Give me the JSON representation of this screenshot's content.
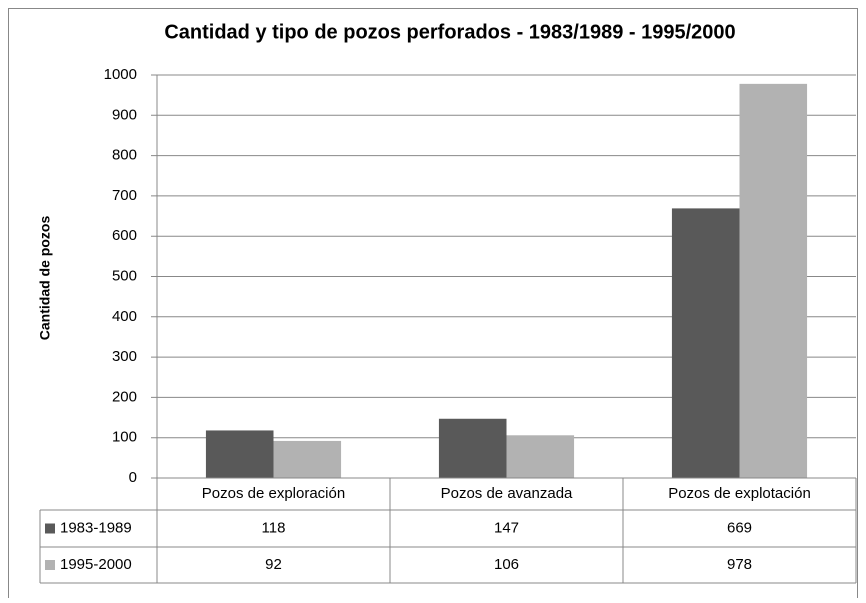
{
  "chart_data": {
    "type": "bar",
    "title": "Cantidad y tipo de pozos perforados - 1983/1989 - 1995/2000",
    "y_label": "Cantidad de pozos",
    "categories": [
      "Pozos de exploración",
      "Pozos de avanzada",
      "Pozos de explotación"
    ],
    "series": [
      {
        "name": "1983-1989",
        "color": "#595959",
        "values": [
          118,
          147,
          669
        ]
      },
      {
        "name": "1995-2000",
        "color": "#b2b2b2",
        "values": [
          92,
          106,
          978
        ]
      }
    ],
    "ylim": [
      0,
      1000
    ],
    "yticks": [
      0,
      100,
      200,
      300,
      400,
      500,
      600,
      700,
      800,
      900,
      1000
    ],
    "grid": true
  }
}
